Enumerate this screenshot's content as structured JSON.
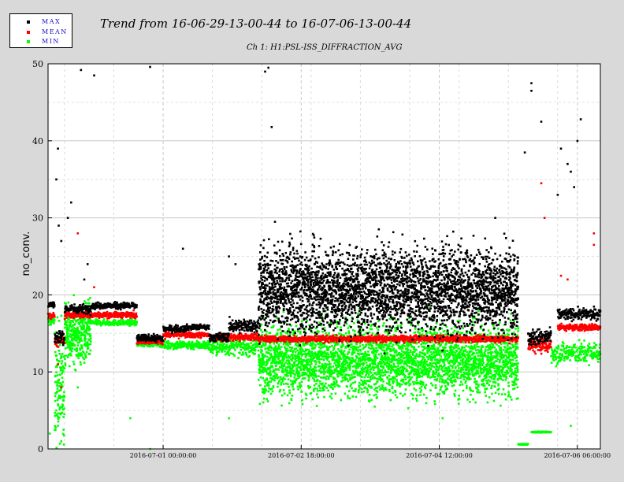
{
  "chart_data": {
    "type": "scatter",
    "title": "Trend from 16-06-29-13-00-44 to 16-07-06-13-00-44",
    "subtitle": "Ch 1: H1:PSL-ISS_DIFFRACTION_AVG",
    "ylabel": "no_conv.",
    "xlabel": "",
    "ylim": [
      0,
      50
    ],
    "yticks": [
      0,
      10,
      20,
      30,
      40,
      50
    ],
    "x_range_hours": [
      0,
      168
    ],
    "xticks": [
      {
        "h": 35,
        "label": "2016-07-01 00:00:00"
      },
      {
        "h": 77,
        "label": "2016-07-02 18:00:00"
      },
      {
        "h": 119,
        "label": "2016-07-04 12:00:00"
      },
      {
        "h": 161,
        "label": "2016-07-06 06:00:00"
      }
    ],
    "grid": true,
    "legend": "top-left",
    "series": [
      {
        "name": "MAX",
        "color": "#000000",
        "segments": [
          {
            "h0": 0,
            "h1": 2,
            "y": 18.7,
            "spread": 0.7
          },
          {
            "h0": 2,
            "h1": 5,
            "y": 14.5,
            "spread": 1.2
          },
          {
            "h0": 5,
            "h1": 13,
            "y": 18.2,
            "spread": 0.8
          },
          {
            "h0": 13,
            "h1": 27,
            "y": 18.6,
            "spread": 0.6
          },
          {
            "h0": 27,
            "h1": 35,
            "y": 14.4,
            "spread": 0.6
          },
          {
            "h0": 35,
            "h1": 42,
            "y": 15.6,
            "spread": 0.6
          },
          {
            "h0": 42,
            "h1": 49,
            "y": 15.8,
            "spread": 0.5
          },
          {
            "h0": 49,
            "h1": 55,
            "y": 14.5,
            "spread": 0.8
          },
          {
            "h0": 55,
            "h1": 64,
            "y": 16.0,
            "spread": 1.2
          },
          {
            "h0": 64,
            "h1": 143,
            "y": 20.7,
            "spread": 3.5
          },
          {
            "h0": 146,
            "h1": 153,
            "y": 14.5,
            "spread": 1.5
          },
          {
            "h0": 155,
            "h1": 168,
            "y": 17.5,
            "spread": 1.0
          }
        ],
        "outliers": [
          [
            2.5,
            35
          ],
          [
            3,
            39
          ],
          [
            3.2,
            29
          ],
          [
            4,
            27
          ],
          [
            6,
            30
          ],
          [
            7,
            32
          ],
          [
            10,
            49.2
          ],
          [
            14,
            48.5
          ],
          [
            11,
            22
          ],
          [
            12,
            24
          ],
          [
            31,
            49.6
          ],
          [
            41,
            26
          ],
          [
            55,
            25
          ],
          [
            57,
            24
          ],
          [
            67,
            49.5
          ],
          [
            68,
            41.8
          ],
          [
            66,
            49
          ],
          [
            69,
            29.5
          ],
          [
            136,
            30
          ],
          [
            145,
            38.5
          ],
          [
            147,
            47.5
          ],
          [
            147,
            46.5
          ],
          [
            150,
            42.5
          ],
          [
            158,
            37
          ],
          [
            159,
            36
          ],
          [
            160,
            34
          ],
          [
            161,
            40
          ],
          [
            162,
            42.8
          ],
          [
            155,
            33
          ],
          [
            156,
            39
          ]
        ]
      },
      {
        "name": "MEAN",
        "color": "#ff0000",
        "segments": [
          {
            "h0": 0,
            "h1": 2,
            "y": 17.3,
            "spread": 0.5
          },
          {
            "h0": 2,
            "h1": 5,
            "y": 14.0,
            "spread": 1.0
          },
          {
            "h0": 5,
            "h1": 13,
            "y": 17.4,
            "spread": 0.6
          },
          {
            "h0": 13,
            "h1": 27,
            "y": 17.4,
            "spread": 0.5
          },
          {
            "h0": 27,
            "h1": 35,
            "y": 14.0,
            "spread": 0.5
          },
          {
            "h0": 35,
            "h1": 49,
            "y": 14.8,
            "spread": 0.5
          },
          {
            "h0": 49,
            "h1": 64,
            "y": 14.5,
            "spread": 0.7
          },
          {
            "h0": 64,
            "h1": 143,
            "y": 14.3,
            "spread": 0.6
          },
          {
            "h0": 146,
            "h1": 153,
            "y": 13.5,
            "spread": 1.5
          },
          {
            "h0": 155,
            "h1": 168,
            "y": 15.8,
            "spread": 0.6
          }
        ],
        "outliers": [
          [
            3,
            11
          ],
          [
            4,
            8
          ],
          [
            9,
            28
          ],
          [
            14,
            21
          ],
          [
            26,
            18
          ],
          [
            150,
            34.5
          ],
          [
            151,
            30
          ],
          [
            156,
            22.5
          ],
          [
            158,
            22
          ],
          [
            166,
            28
          ],
          [
            166,
            26.5
          ]
        ]
      },
      {
        "name": "MIN",
        "color": "#00ff00",
        "segments": [
          {
            "h0": 0,
            "h1": 2,
            "y": 16.6,
            "spread": 0.8
          },
          {
            "h0": 2,
            "h1": 5,
            "y": 8.5,
            "spread": 5.0
          },
          {
            "h0": 5,
            "h1": 13,
            "y": 15.0,
            "spread": 2.5
          },
          {
            "h0": 13,
            "h1": 27,
            "y": 16.4,
            "spread": 0.5
          },
          {
            "h0": 27,
            "h1": 35,
            "y": 13.7,
            "spread": 0.6
          },
          {
            "h0": 35,
            "h1": 49,
            "y": 13.5,
            "spread": 0.8
          },
          {
            "h0": 49,
            "h1": 64,
            "y": 13.2,
            "spread": 1.5
          },
          {
            "h0": 64,
            "h1": 143,
            "y": 11.5,
            "spread": 3.0
          },
          {
            "h0": 143,
            "h1": 146,
            "y": 0.6,
            "spread": 0.1
          },
          {
            "h0": 147,
            "h1": 153,
            "y": 2.2,
            "spread": 0.1
          },
          {
            "h0": 153,
            "h1": 168,
            "y": 12.5,
            "spread": 2.0
          }
        ],
        "outliers": [
          [
            0.5,
            2
          ],
          [
            4,
            1
          ],
          [
            31,
            0
          ],
          [
            9,
            8
          ],
          [
            25,
            4
          ],
          [
            55,
            4
          ],
          [
            120,
            4
          ],
          [
            159,
            3
          ]
        ]
      }
    ]
  }
}
